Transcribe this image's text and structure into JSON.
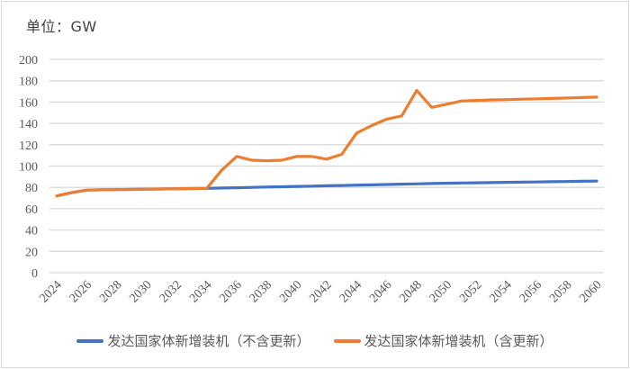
{
  "unit_label": "单位：GW",
  "colors": {
    "series_1": "#4472c4",
    "series_2": "#ed7d31",
    "grid": "#d9d9d9",
    "text": "#595959"
  },
  "legend": [
    {
      "label": "发达国家体新增装机（不含更新）",
      "color": "#4472c4"
    },
    {
      "label": "发达国家体新增装机（含更新）",
      "color": "#ed7d31"
    }
  ],
  "chart_data": {
    "type": "line",
    "title": "",
    "xlabel": "",
    "ylabel": "单位：GW",
    "ylim": [
      0,
      200
    ],
    "y_ticks": [
      0,
      20,
      40,
      60,
      80,
      100,
      120,
      140,
      160,
      180,
      200
    ],
    "x_tick_labels": [
      "2024",
      "2026",
      "2028",
      "2030",
      "2032",
      "2034",
      "2036",
      "2038",
      "2040",
      "2042",
      "2044",
      "2046",
      "2048",
      "2050",
      "2052",
      "2054",
      "2056",
      "2058",
      "2060"
    ],
    "grid": true,
    "legend_position": "bottom",
    "x": [
      2024,
      2025,
      2026,
      2027,
      2028,
      2029,
      2030,
      2031,
      2032,
      2033,
      2034,
      2035,
      2036,
      2037,
      2038,
      2039,
      2040,
      2041,
      2042,
      2043,
      2044,
      2045,
      2046,
      2047,
      2048,
      2049,
      2050,
      2051,
      2052,
      2053,
      2054,
      2055,
      2056,
      2057,
      2058,
      2059,
      2060
    ],
    "series": [
      {
        "name": "发达国家体新增装机（不含更新）",
        "color": "#4472c4",
        "values": [
          72,
          75,
          77.5,
          77.7,
          77.9,
          78.1,
          78.3,
          78.5,
          78.7,
          78.9,
          79.1,
          79.4,
          79.7,
          80,
          80.3,
          80.6,
          80.9,
          81.2,
          81.5,
          81.8,
          82.1,
          82.4,
          82.7,
          83,
          83.3,
          83.6,
          83.9,
          84.1,
          84.3,
          84.5,
          84.7,
          84.9,
          85.1,
          85.3,
          85.5,
          85.7,
          85.9
        ]
      },
      {
        "name": "发达国家体新增装机（含更新）",
        "color": "#ed7d31",
        "values": [
          72,
          75,
          77.5,
          77.7,
          77.9,
          78.1,
          78.3,
          78.5,
          78.7,
          78.9,
          79.1,
          96,
          109,
          105.5,
          105,
          105.5,
          109,
          109,
          106.5,
          111,
          131,
          138,
          144,
          147,
          171,
          155,
          158,
          161,
          161.5,
          162,
          162.3,
          162.7,
          163,
          163.4,
          163.8,
          164.2,
          164.6
        ]
      }
    ]
  }
}
